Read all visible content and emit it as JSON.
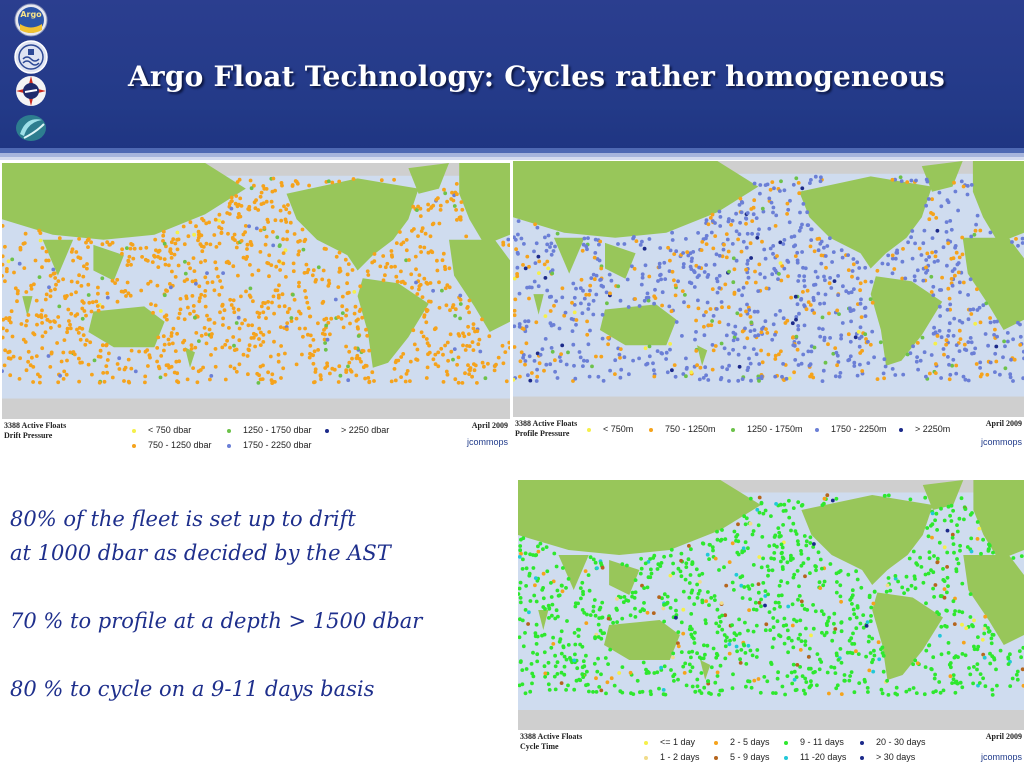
{
  "slide": {
    "title": "Argo Float Technology: Cycles rather homogeneous",
    "logos": [
      {
        "name": "argo-logo",
        "text": "Argo"
      },
      {
        "name": "ioc-logo"
      },
      {
        "name": "wmo-logo"
      },
      {
        "name": "jcomm-emblem-logo"
      }
    ],
    "bullets": [
      "80% of the fleet is set up to drift",
      "at 1000 dbar as decided by the AST",
      "70 % to profile at a depth > 1500 dbar",
      "80 % to cycle on a 9-11 days basis"
    ]
  },
  "colors": {
    "land": "#98c65a",
    "ocean": "#cfdcef",
    "polar_land": "#cfcfcf",
    "header": "#273c8c",
    "text": "#1e2f8c"
  },
  "maps": [
    {
      "id": "drift",
      "caption_line1": "3388 Active Floats",
      "caption_line2": "Drift Pressure",
      "date": "April 2009",
      "brand": "jcommops",
      "legend": [
        {
          "label": "< 750 dbar",
          "color": "#f5f04a"
        },
        {
          "label": "1250 - 1750 dbar",
          "color": "#6cc24a"
        },
        {
          "label": "> 2250 dbar",
          "color": "#1c2a8a"
        },
        {
          "label": "750 - 1250 dbar",
          "color": "#f5a31c"
        },
        {
          "label": "1750 - 2250 dbar",
          "color": "#6b7fd6"
        }
      ]
    },
    {
      "id": "profile",
      "caption_line1": "3388 Active Floats",
      "caption_line2": "Profile Pressure",
      "date": "April 2009",
      "brand": "jcommops",
      "legend": [
        {
          "label": "< 750m",
          "color": "#f5f04a"
        },
        {
          "label": "750 - 1250m",
          "color": "#f5a31c"
        },
        {
          "label": "1250 - 1750m",
          "color": "#6cc24a"
        },
        {
          "label": "1750 - 2250m",
          "color": "#6b7fd6"
        },
        {
          "label": "> 2250m",
          "color": "#1c2a8a"
        }
      ]
    },
    {
      "id": "cycle",
      "caption_line1": "3388 Active Floats",
      "caption_line2": "Cycle Time",
      "date": "April 2009",
      "brand": "jcommops",
      "legend": [
        {
          "label": "<= 1 day",
          "color": "#f5f04a"
        },
        {
          "label": "2 - 5 days",
          "color": "#f5a31c"
        },
        {
          "label": "9 - 11 days",
          "color": "#2ee82e"
        },
        {
          "label": "20 - 30 days",
          "color": "#1c2a8a"
        },
        {
          "label": "1 - 2 days",
          "color": "#f0dc8a"
        },
        {
          "label": "5 - 9 days",
          "color": "#b5651d"
        },
        {
          "label": "11 -20 days",
          "color": "#22c8d8"
        },
        {
          "label": "> 30 days",
          "color": "#1c2a8a"
        }
      ]
    }
  ]
}
